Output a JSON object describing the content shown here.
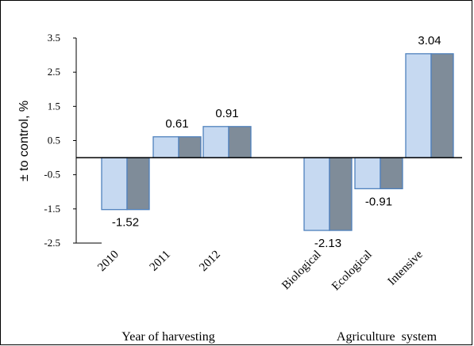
{
  "chart_data": {
    "type": "bar",
    "ylabel": "± to control, %",
    "ylim": [
      -2.5,
      3.5
    ],
    "yticks": [
      "3.5",
      "2.5",
      "1.5",
      "0.5",
      "-0.5",
      "-1.5",
      "-2.5"
    ],
    "grid": false,
    "legend": "none",
    "categories": [
      "2010",
      "2011",
      "2012",
      "Biological",
      "Ecological",
      "Intensive"
    ],
    "values": [
      -1.52,
      0.61,
      0.91,
      -2.13,
      -0.91,
      3.04
    ],
    "data_labels": [
      "-1.52",
      "0.61",
      "0.91",
      "-2.13",
      "-0.91",
      "3.04"
    ],
    "groups": [
      {
        "label": "Year of harvesting"
      },
      {
        "label": "Agriculture  system"
      }
    ],
    "colors": {
      "bar_front": "#c6d9f1",
      "bar_front_edge": "#4f81bd",
      "bar_side": "#7f8c99",
      "axis": "#000000"
    }
  }
}
